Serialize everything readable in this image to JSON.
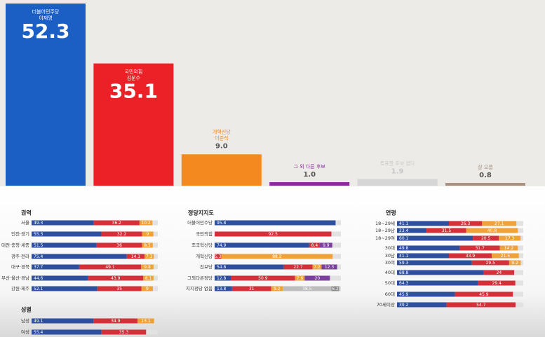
{
  "chart_data": [
    {
      "type": "column",
      "categories": [
        "더불어민주당",
        "국민의힘",
        "개혁신당",
        "그 외 다른 후보",
        "투표할 후보 없다",
        "잘 모름"
      ],
      "candidates": [
        "이재명",
        "김문수",
        "이준석",
        null,
        null,
        null
      ],
      "values": [
        52.3,
        35.1,
        9.0,
        1.0,
        1.9,
        0.8
      ],
      "value_labels": [
        "52.3",
        "35.1",
        "9.0",
        "1.0",
        "1.9",
        "0.8"
      ],
      "colors": [
        "#1b5fc4",
        "#ec2027",
        "#f4891f",
        "#8a2a9c",
        "#d6d6d6",
        "#a8917f"
      ]
    },
    {
      "type": "stacked_bar_h",
      "title": "권역",
      "categories": [
        "서울",
        "인천·경기",
        "대전·충청·세종",
        "광주·전라",
        "대구·경북",
        "부산·울산·경남",
        "강원·제주"
      ],
      "series": [
        {
          "color": "#2d4f9e",
          "values": [
            49.3,
            55.3,
            51.5,
            75.4,
            37.7,
            44.6,
            52.1
          ]
        },
        {
          "color": "#d4303a",
          "values": [
            36.2,
            32.2,
            36.0,
            14.1,
            49.1,
            43.9,
            35.0
          ]
        },
        {
          "color": "#f0a23a",
          "values": [
            10.2,
            9.0,
            8.5,
            7.3,
            9.8,
            8.1,
            9.0
          ]
        },
        {
          "color": "#7b3fa0",
          "values": [
            null,
            null,
            null,
            null,
            null,
            null,
            null
          ]
        },
        {
          "color": "#bdbdbd",
          "values": [
            null,
            null,
            null,
            null,
            null,
            null,
            null
          ]
        },
        {
          "color": "#8a8a8a",
          "values": [
            null,
            null,
            null,
            null,
            null,
            null,
            null
          ]
        }
      ]
    },
    {
      "type": "stacked_bar_h",
      "title": "정당지지도",
      "categories": [
        "더불어민주당",
        "국민의힘",
        "조국혁신당",
        "개혁신당",
        "진보당",
        "그외다른정당",
        "지지정당 없음"
      ],
      "series": [
        {
          "color": "#2d4f9e",
          "values": [
            95.8,
            null,
            74.9,
            null,
            54.8,
            12.8,
            13.8
          ]
        },
        {
          "color": "#d4303a",
          "values": [
            null,
            92.5,
            8.4,
            5.3,
            22.7,
            50.9,
            31.0
          ]
        },
        {
          "color": "#f0a23a",
          "values": [
            null,
            null,
            null,
            88.2,
            7.2,
            7.6,
            9.2
          ]
        },
        {
          "color": "#7b3fa0",
          "values": [
            null,
            null,
            9.9,
            null,
            12.3,
            20.0,
            null
          ]
        },
        {
          "color": "#bdbdbd",
          "values": [
            null,
            null,
            null,
            null,
            null,
            null,
            38.5
          ]
        },
        {
          "color": "#8a8a8a",
          "values": [
            null,
            null,
            null,
            null,
            null,
            null,
            6.2
          ]
        }
      ]
    },
    {
      "type": "stacked_bar_h",
      "title": "연령",
      "categories": [
        "18~29세",
        "18~29남",
        "18~29여",
        "30대",
        "30남",
        "30여",
        "40대",
        "50대",
        "60대",
        "70세이상"
      ],
      "series": [
        {
          "color": "#2d4f9e",
          "values": [
            41.1,
            23.4,
            60.1,
            49.8,
            41.1,
            59.3,
            68.8,
            64.3,
            45.9,
            39.2
          ]
        },
        {
          "color": "#d4303a",
          "values": [
            26.3,
            31.5,
            20.5,
            31.7,
            33.9,
            29.5,
            24.0,
            29.4,
            45.9,
            54.7
          ]
        },
        {
          "color": "#f0a23a",
          "values": [
            27.1,
            40.8,
            17.3,
            14.2,
            21.5,
            9.2,
            null,
            null,
            null,
            null
          ]
        },
        {
          "color": "#7b3fa0",
          "values": [
            null,
            null,
            null,
            null,
            null,
            null,
            null,
            null,
            null,
            null
          ]
        },
        {
          "color": "#bdbdbd",
          "values": [
            null,
            null,
            null,
            null,
            null,
            null,
            null,
            null,
            null,
            null
          ]
        },
        {
          "color": "#8a8a8a",
          "values": [
            null,
            null,
            null,
            null,
            null,
            null,
            null,
            null,
            null,
            null
          ]
        }
      ]
    },
    {
      "type": "stacked_bar_h",
      "title": "성별",
      "categories": [
        "남성",
        "여성"
      ],
      "series": [
        {
          "color": "#2d4f9e",
          "values": [
            49.1,
            55.4
          ]
        },
        {
          "color": "#d4303a",
          "values": [
            34.9,
            35.3
          ]
        },
        {
          "color": "#f0a23a",
          "values": [
            13.1,
            null
          ]
        },
        {
          "color": "#7b3fa0",
          "values": [
            null,
            null
          ]
        },
        {
          "color": "#bdbdbd",
          "values": [
            null,
            null
          ]
        },
        {
          "color": "#8a8a8a",
          "values": [
            null,
            null
          ]
        }
      ]
    }
  ]
}
